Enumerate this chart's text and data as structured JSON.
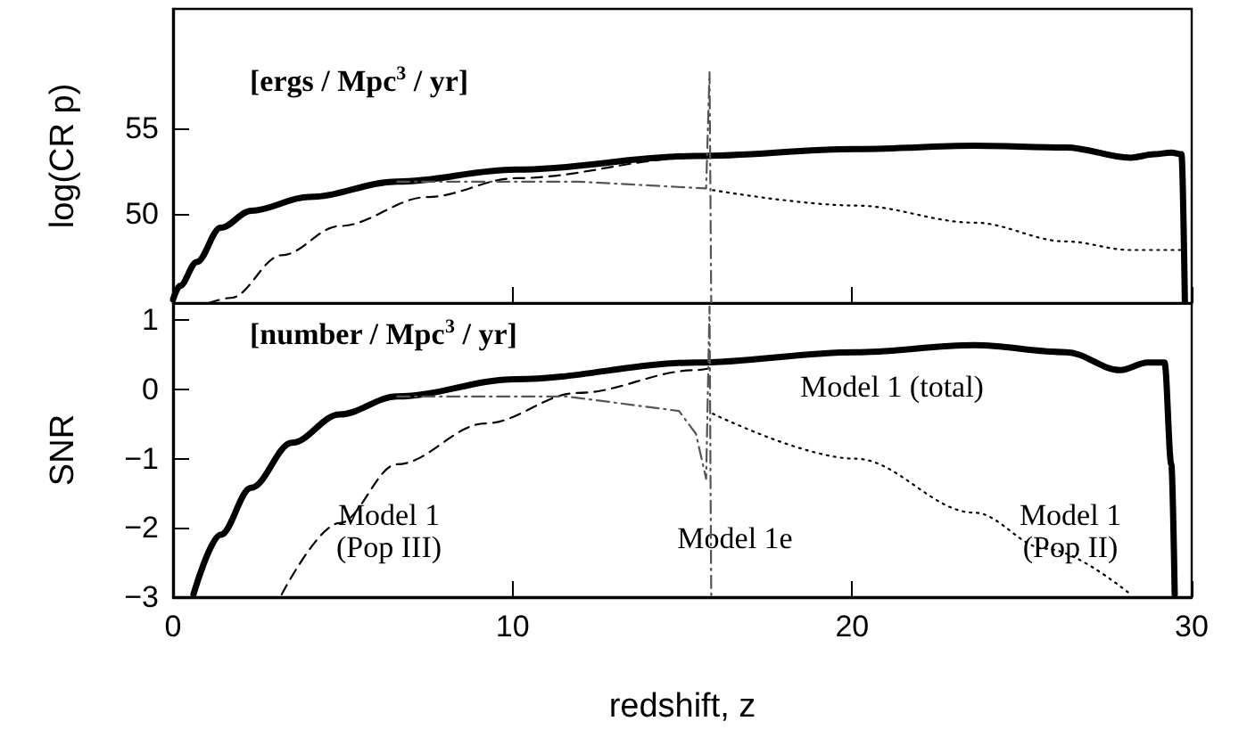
{
  "chart_data": [
    {
      "type": "line",
      "ylabel": "log(CR p)",
      "xlim": [
        0,
        30
      ],
      "xticks": [
        0,
        10,
        20,
        30
      ],
      "ylim": [
        44.8,
        62
      ],
      "yticks": [
        50,
        55
      ],
      "tick_labels": "y",
      "grid": false,
      "marker": "none",
      "annotations": [
        "[ergs / Mpc$^{3}$ / yr]"
      ],
      "series": [
        {
          "color": "#000000",
          "line_style": "solid",
          "x": [
            0,
            0.2,
            0.7,
            1.4,
            2.3,
            4,
            6.6,
            10.1,
            15.4,
            20.1,
            23.6,
            26.3,
            28.2,
            28.9,
            29.4,
            29.7,
            29.8
          ],
          "values": [
            45.0,
            45.8,
            47.2,
            49.2,
            50.2,
            51.0,
            51.9,
            52.6,
            53.4,
            53.8,
            54.0,
            53.9,
            53.3,
            53.5,
            53.6,
            53.5,
            44.8
          ]
        },
        {
          "color": "#000000",
          "line_style": "dashed",
          "x": [
            1.05,
            1.7,
            3.2,
            4.9,
            7.5,
            10.1,
            15.4,
            16
          ],
          "values": [
            44.8,
            45.1,
            47.6,
            49.3,
            51.0,
            52.1,
            53.3,
            53.4
          ]
        },
        {
          "color": "#555555",
          "line_style": "dashdot",
          "x": [
            6.6,
            8.4,
            11.9,
            15.7,
            15.8,
            15.85
          ],
          "values": [
            51.9,
            51.9,
            51.9,
            51.5,
            58.3,
            44.8
          ]
        },
        {
          "color": "#000000",
          "line_style": "dotted",
          "x": [
            15.9,
            20.1,
            23.6,
            26.3,
            28.2,
            29.7
          ],
          "values": [
            51.4,
            50.5,
            49.5,
            48.4,
            47.9,
            47.9
          ]
        }
      ]
    },
    {
      "type": "line",
      "xlabel": "redshift, z",
      "ylabel": "SNR",
      "xlim": [
        0,
        30
      ],
      "xticks": [
        0,
        10,
        20,
        30
      ],
      "ylim": [
        -3,
        1.25
      ],
      "yticks": [
        -3,
        -2,
        -1,
        0,
        1
      ],
      "grid": false,
      "marker": "none",
      "annotations": [
        "[number / Mpc$^{3}$ / yr]",
        "Model 1 (total)",
        "Model 1\n(Pop III)",
        "Model 1e",
        "Model 1\n(Pop II)"
      ],
      "series": [
        {
          "color": "#000000",
          "line_style": "solid",
          "x": [
            0.6,
            1.4,
            2.3,
            3.5,
            4.9,
            6.6,
            10.1,
            15.4,
            20.1,
            23.6,
            26.3,
            27.9,
            28.7,
            29.2,
            29.4,
            29.5
          ],
          "values": [
            -2.96,
            -2.1,
            -1.42,
            -0.77,
            -0.36,
            -0.1,
            0.15,
            0.39,
            0.54,
            0.64,
            0.54,
            0.28,
            0.39,
            0.39,
            -1.08,
            -2.96
          ]
        },
        {
          "color": "#000000",
          "line_style": "dashed",
          "x": [
            3.2,
            4.9,
            6.6,
            9.2,
            11.9,
            15.4,
            16
          ],
          "values": [
            -2.96,
            -1.93,
            -1.08,
            -0.49,
            -0.05,
            0.28,
            0.33
          ]
        },
        {
          "color": "#555555",
          "line_style": "dashdot",
          "x": [
            6.6,
            7.5,
            11.6,
            14.9,
            15.4,
            15.7,
            15.8,
            15.85
          ],
          "values": [
            -0.1,
            -0.1,
            -0.1,
            -0.31,
            -0.64,
            -1.29,
            1.2,
            -3
          ]
        },
        {
          "color": "#000000",
          "line_style": "dotted",
          "x": [
            15.9,
            20.1,
            23.6,
            25.7,
            28.2
          ],
          "values": [
            -0.35,
            -1.0,
            -1.78,
            -2.3,
            -2.96
          ]
        }
      ]
    }
  ]
}
